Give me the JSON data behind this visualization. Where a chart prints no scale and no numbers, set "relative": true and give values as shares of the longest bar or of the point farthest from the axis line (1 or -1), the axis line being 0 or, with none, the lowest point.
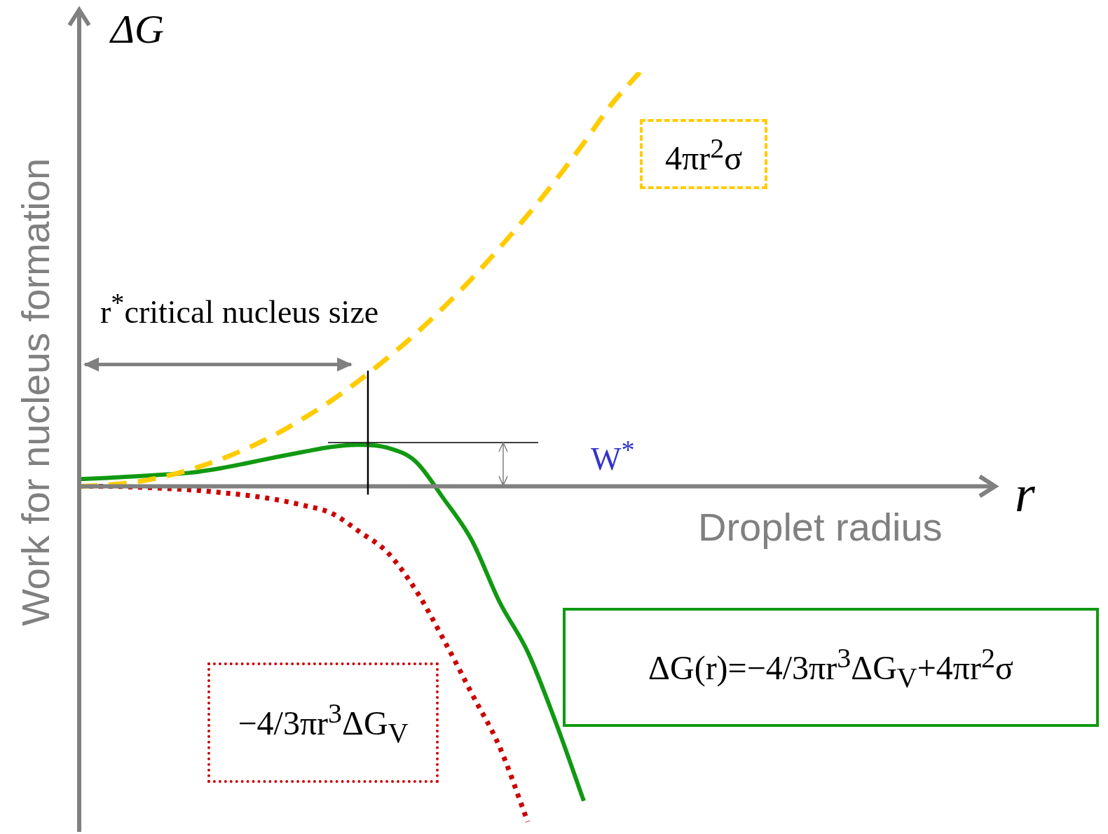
{
  "chart_data": {
    "type": "line",
    "relative": true,
    "xlabel": "Droplet radius",
    "ylabel": "Work for nucleus formation",
    "annotations": [
      "ΔG",
      "r",
      "r$^{*}$critical nucleus size",
      "W$^{*}$"
    ],
    "categories": [
      null,
      null,
      null,
      null,
      null,
      null,
      null,
      null,
      null,
      null,
      null,
      null,
      null,
      null,
      null,
      null,
      null,
      null,
      null,
      null,
      null,
      null,
      null,
      null,
      null,
      null,
      null,
      null,
      null,
      null,
      null,
      null,
      null
    ],
    "series": [
      {
        "name": "4πr$^{2}$σ",
        "color": "#ffcc00",
        "line_style": "dashed",
        "values": [
          0,
          0.003,
          0.01,
          0.023,
          0.041,
          0.064,
          0.092,
          0.125,
          0.164,
          0.207,
          0.256,
          0.31,
          0.368,
          0.432,
          0.501,
          0.576,
          0.655,
          0.739,
          0.829,
          0.923,
          1.0,
          null,
          null,
          null,
          null,
          null,
          null,
          null,
          null,
          null,
          null,
          null,
          null
        ]
      },
      {
        "name": "−4/3πr$^{3}$ΔG$_{V}$",
        "color": "#cc0000",
        "line_style": "dotted",
        "values": [
          0,
          0,
          -0.002,
          -0.005,
          -0.009,
          -0.015,
          -0.022,
          -0.032,
          -0.046,
          -0.065,
          -0.11,
          -0.16,
          -0.25,
          -0.37,
          -0.5,
          -0.63,
          -0.81,
          null,
          null,
          null,
          null,
          null,
          null,
          null,
          null,
          null,
          null,
          null,
          null,
          null,
          null,
          null,
          null
        ]
      },
      {
        "name": "ΔG(r)=−4/3πr$^{3}$ΔG$_{V}$+4πr$^{2}$σ",
        "color": "#119911",
        "line_style": "solid",
        "values": [
          0.017,
          0.02,
          0.024,
          0.028,
          0.033,
          0.043,
          0.056,
          0.07,
          0.083,
          0.095,
          0.1,
          0.093,
          0.06,
          -0.03,
          -0.13,
          -0.28,
          -0.4,
          -0.57,
          -0.76,
          null,
          null,
          null,
          null,
          null,
          null,
          null,
          null,
          null,
          null,
          null,
          null,
          null,
          null
        ]
      }
    ]
  }
}
